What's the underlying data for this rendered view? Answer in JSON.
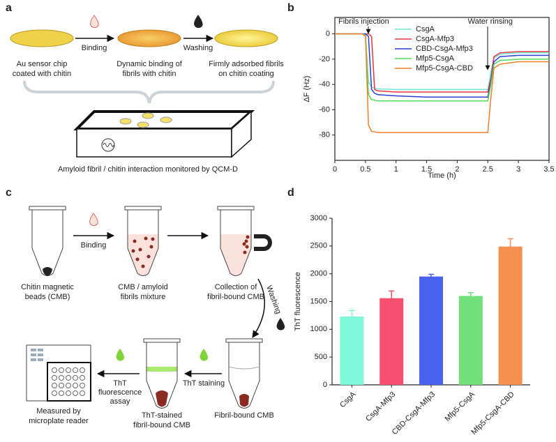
{
  "panel_labels": [
    "a",
    "b",
    "c",
    "d"
  ],
  "panel_a": {
    "steps": [
      [
        "Au sensor chip",
        "coated with chitin"
      ],
      [
        "Dynamic binding of",
        "fibrils with chitin"
      ],
      [
        "Firmly adsorbed fibrils",
        "on chitin coating"
      ]
    ],
    "arrows": [
      "Binding",
      "Washing"
    ],
    "caption": "Amyloid fibril / chitin interaction monitored by QCM-D"
  },
  "panel_c": {
    "steps": [
      [
        "Chitin magnetic",
        "beads (CMB)"
      ],
      [
        "CMB / amyloid",
        "fibrils mixture"
      ],
      [
        "Collection of",
        "fibril-bound CMB"
      ],
      [
        "Fibril-bound CMB"
      ],
      [
        "ThT-stained",
        "fibril-bound CMB"
      ],
      [
        "Measured by",
        "microplate reader"
      ]
    ],
    "arrows": [
      "Binding",
      "Washing",
      "ThT staining",
      [
        "ThT",
        "fluorescence",
        "assay"
      ]
    ]
  },
  "chart_data": [
    {
      "type": "line",
      "xlabel": "Time (h)",
      "ylabel": "ΔF (Hz)",
      "annotations": [
        "Fibrils injection",
        "Water rinsing"
      ],
      "x": [
        0,
        0.45,
        0.5,
        0.55,
        0.6,
        0.65,
        0.7,
        1,
        1.5,
        2,
        2.45,
        2.5,
        2.55,
        2.6,
        2.7,
        3,
        3.5
      ],
      "series": [
        {
          "name": "CsgA",
          "color": "#6ee8d6",
          "values": [
            0,
            0,
            -1,
            -38,
            -42,
            -43,
            -43.5,
            -44,
            -44,
            -44,
            -44,
            -44,
            -30,
            -19,
            -16,
            -15,
            -15
          ]
        },
        {
          "name": "CsgA-Mfp3",
          "color": "#e8323c",
          "values": [
            0,
            0,
            0,
            0,
            -2,
            -44,
            -45,
            -46,
            -46,
            -46,
            -46,
            -46,
            -35,
            -18,
            -15,
            -14,
            -14
          ]
        },
        {
          "name": "CBD-CsgA-Mfp3",
          "color": "#2b3fd6",
          "values": [
            0,
            0,
            0,
            -2,
            -44,
            -47,
            -48,
            -49,
            -50,
            -50,
            -50,
            -50,
            -38,
            -22,
            -18,
            -17,
            -17
          ]
        },
        {
          "name": "Mfp5-CsgA",
          "color": "#52d95a",
          "values": [
            0,
            0,
            -1,
            -48,
            -52,
            -52.5,
            -53,
            -53,
            -53,
            -53,
            -53,
            -53,
            -40,
            -24,
            -21,
            -20,
            -20
          ]
        },
        {
          "name": "Mfp5-CsgA-CBD",
          "color": "#f07f2c",
          "values": [
            0,
            0,
            -2,
            -72,
            -77,
            -77.5,
            -78,
            -78,
            -78,
            -78,
            -78,
            -78,
            -50,
            -27,
            -24,
            -22,
            -22
          ]
        }
      ],
      "xlim": [
        0,
        3.5
      ],
      "xticks": [
        0,
        0.5,
        1,
        1.5,
        2,
        2.5,
        3,
        3.5
      ],
      "ylim": [
        -100,
        13
      ],
      "yticks": [
        0,
        -20,
        -40,
        -60,
        -80
      ]
    },
    {
      "type": "bar",
      "ylabel": "ThT fluorescence",
      "categories": [
        "CsgA",
        "CsgA-Mfp3",
        "CBD-CsgA-Mfp3",
        "Mfp5-CsgA",
        "Mfp5-CsgA-CBD"
      ],
      "values": [
        1230,
        1560,
        1950,
        1600,
        2490
      ],
      "errors": [
        110,
        130,
        40,
        60,
        140
      ],
      "colors": [
        "#7ff5d9",
        "#f5506e",
        "#4a62f0",
        "#70e07a",
        "#f59050"
      ],
      "ylim": [
        0,
        3000
      ],
      "yticks": [
        0,
        500,
        1000,
        1500,
        2000,
        2500,
        3000
      ]
    }
  ]
}
